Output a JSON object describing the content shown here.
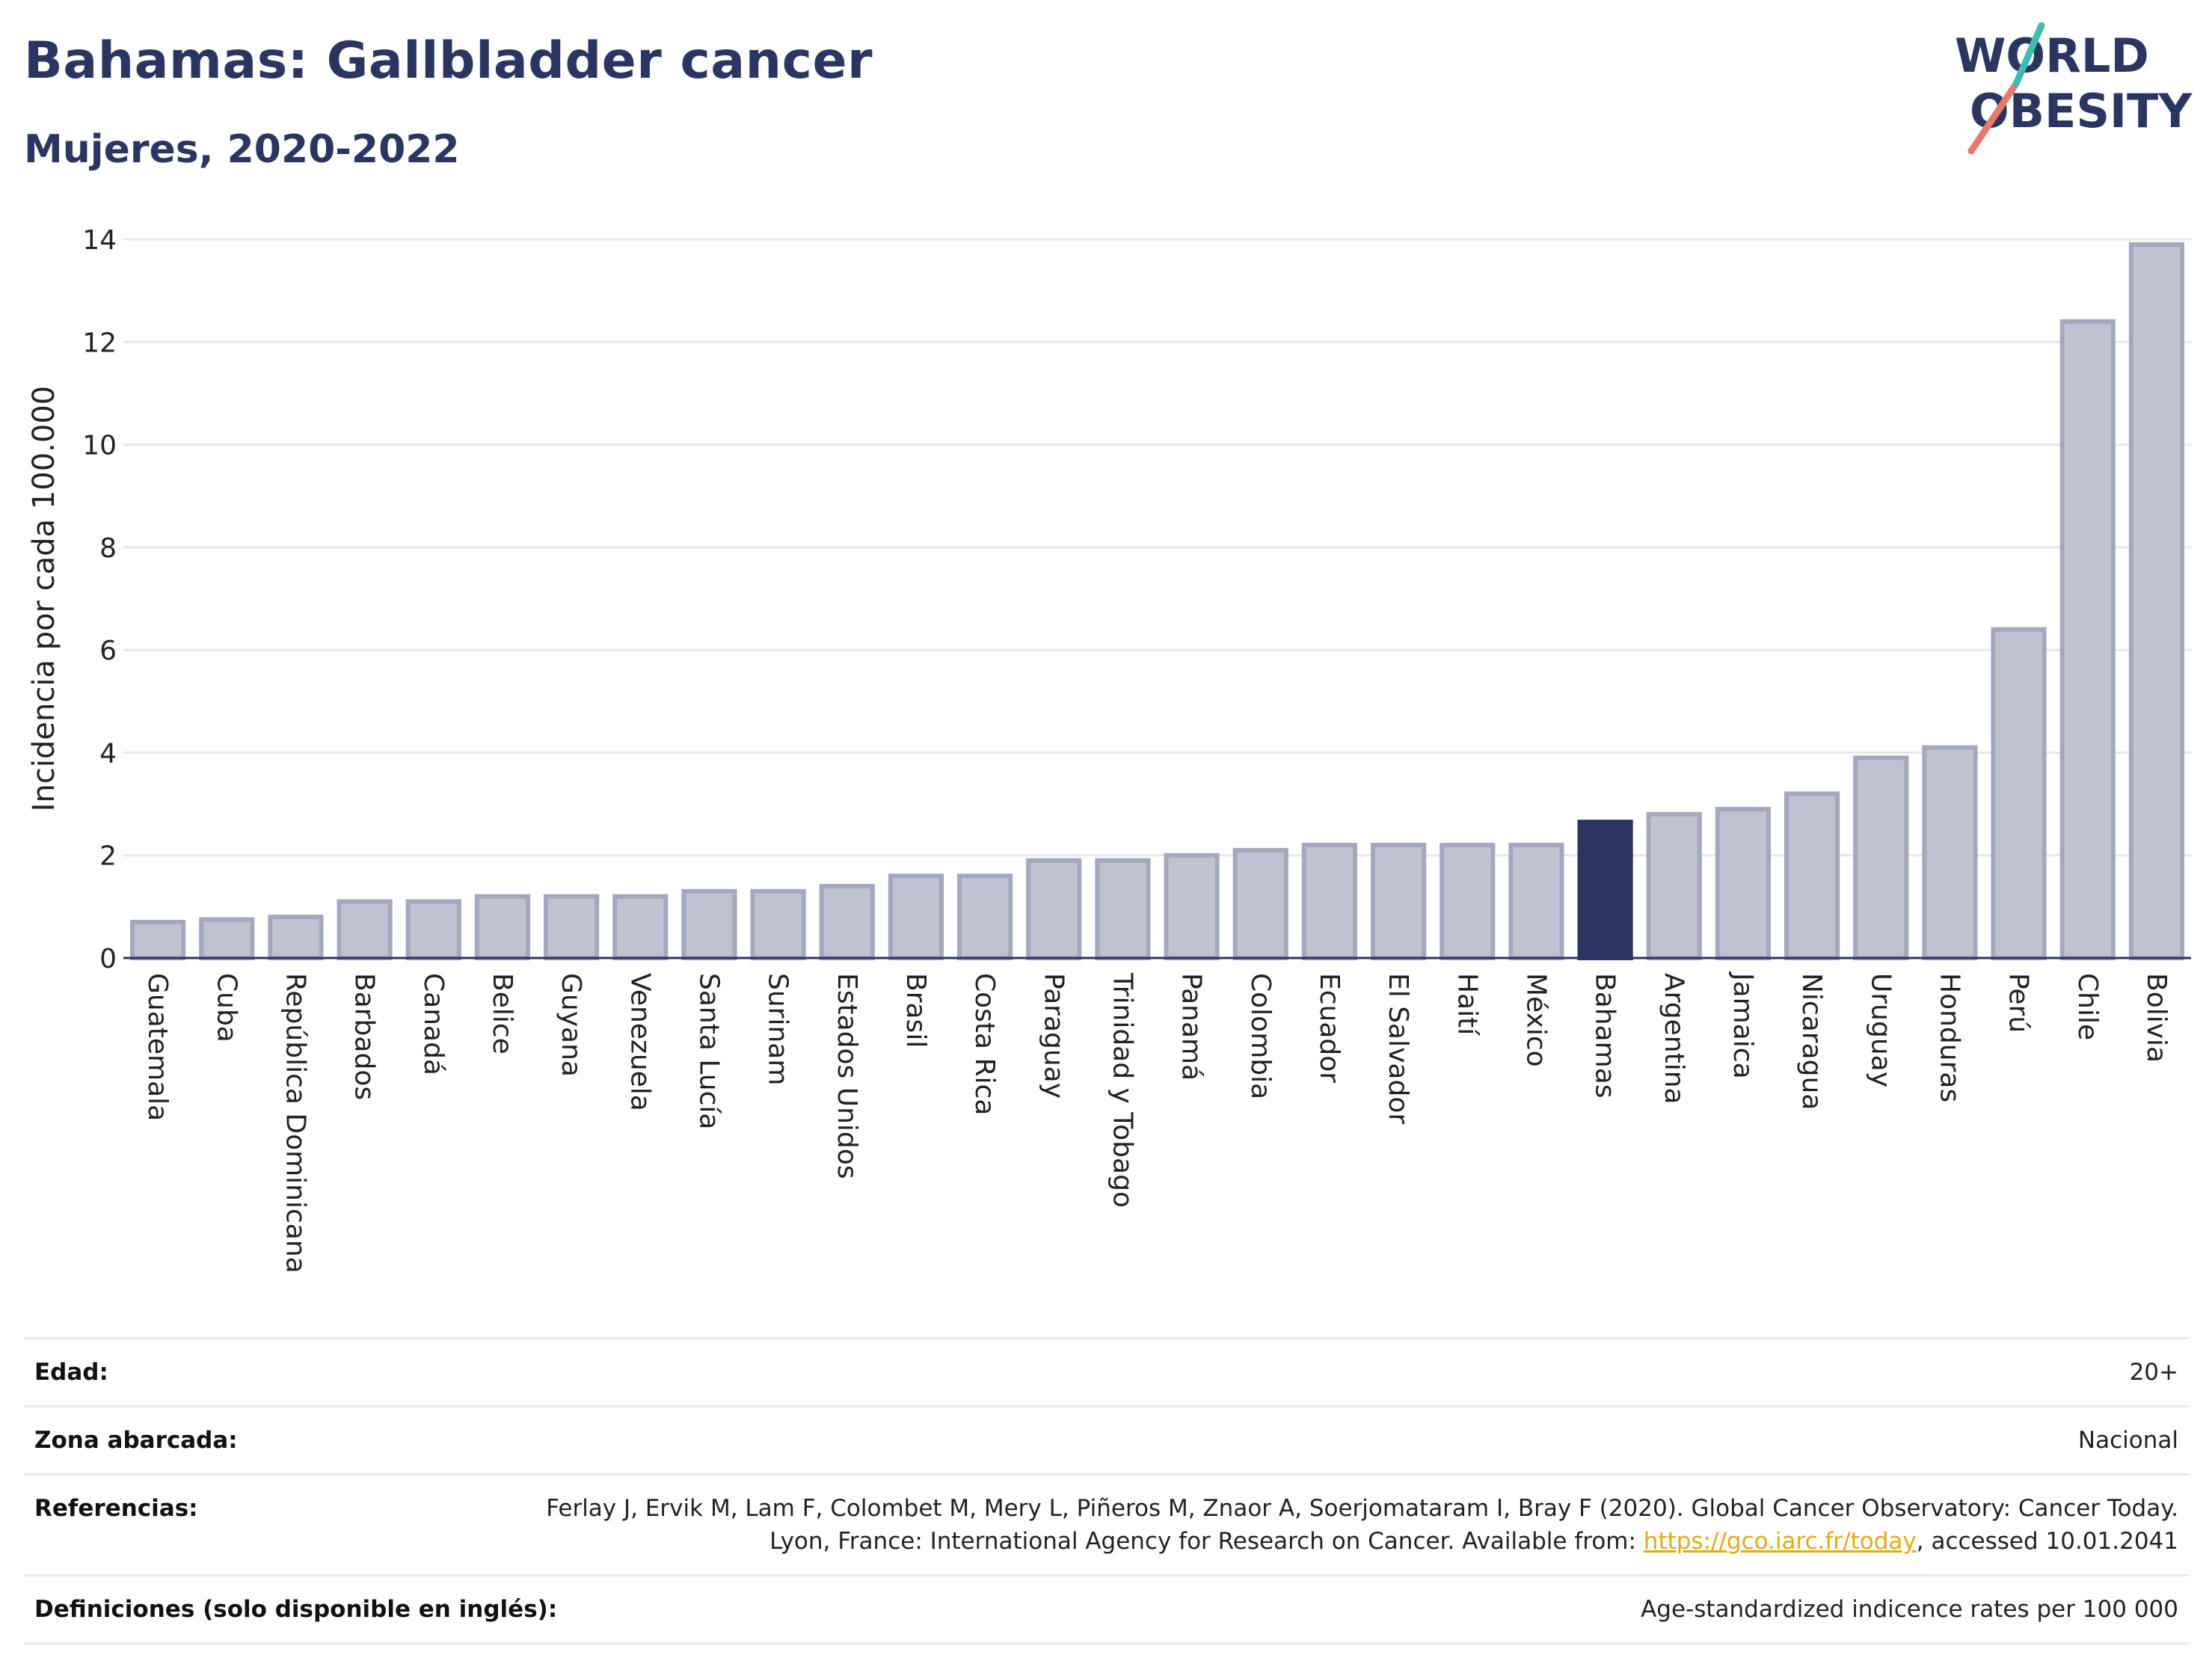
{
  "title": "Bahamas: Gallbladder cancer",
  "subtitle": "Mujeres, 2020-2022",
  "logo": {
    "line1": "WORLD",
    "line2": "OBESITY"
  },
  "colors": {
    "bar": "#bfc3d1",
    "bar_border": "#a3a8be",
    "highlight": "#2b3561",
    "title": "#2b3561"
  },
  "chart_data": {
    "type": "bar",
    "ylabel": "Incidencia por cada 100.000",
    "ylim": [
      0,
      14
    ],
    "yticks": [
      0,
      2,
      4,
      6,
      8,
      10,
      12,
      14
    ],
    "grid": true,
    "highlight": "Bahamas",
    "categories": [
      "Guatemala",
      "Cuba",
      "República Dominicana",
      "Barbados",
      "Canadá",
      "Belice",
      "Guyana",
      "Venezuela",
      "Santa Lucía",
      "Surinam",
      "Estados Unidos",
      "Brasil",
      "Costa Rica",
      "Paraguay",
      "Trinidad y Tobago",
      "Panamá",
      "Colombia",
      "Ecuador",
      "El Salvador",
      "Haití",
      "México",
      "Bahamas",
      "Argentina",
      "Jamaica",
      "Nicaragua",
      "Uruguay",
      "Honduras",
      "Perú",
      "Chile",
      "Bolivia"
    ],
    "values": [
      0.7,
      0.75,
      0.8,
      1.1,
      1.1,
      1.2,
      1.2,
      1.2,
      1.3,
      1.3,
      1.4,
      1.6,
      1.6,
      1.9,
      1.9,
      2.0,
      2.1,
      2.2,
      2.2,
      2.2,
      2.2,
      2.65,
      2.8,
      2.9,
      3.2,
      3.9,
      4.1,
      6.4,
      12.4,
      13.9
    ]
  },
  "info": {
    "age_label": "Edad:",
    "age_value": "20+",
    "zone_label": "Zona abarcada:",
    "zone_value": "Nacional",
    "ref_label": "Referencias:",
    "ref_text_1": "Ferlay J, Ervik M, Lam F, Colombet M, Mery L, Piñeros M, Znaor A, Soerjomataram I, Bray F (2020). Global Cancer Observatory: Cancer Today. Lyon, France: International Agency for Research on Cancer. Available from: ",
    "ref_link": "https://gco.iarc.fr/today",
    "ref_text_2": ", accessed 10.01.2041",
    "def_label": "Definiciones (solo disponible en inglés):",
    "def_value": "Age-standardized indicence rates per 100 000"
  }
}
